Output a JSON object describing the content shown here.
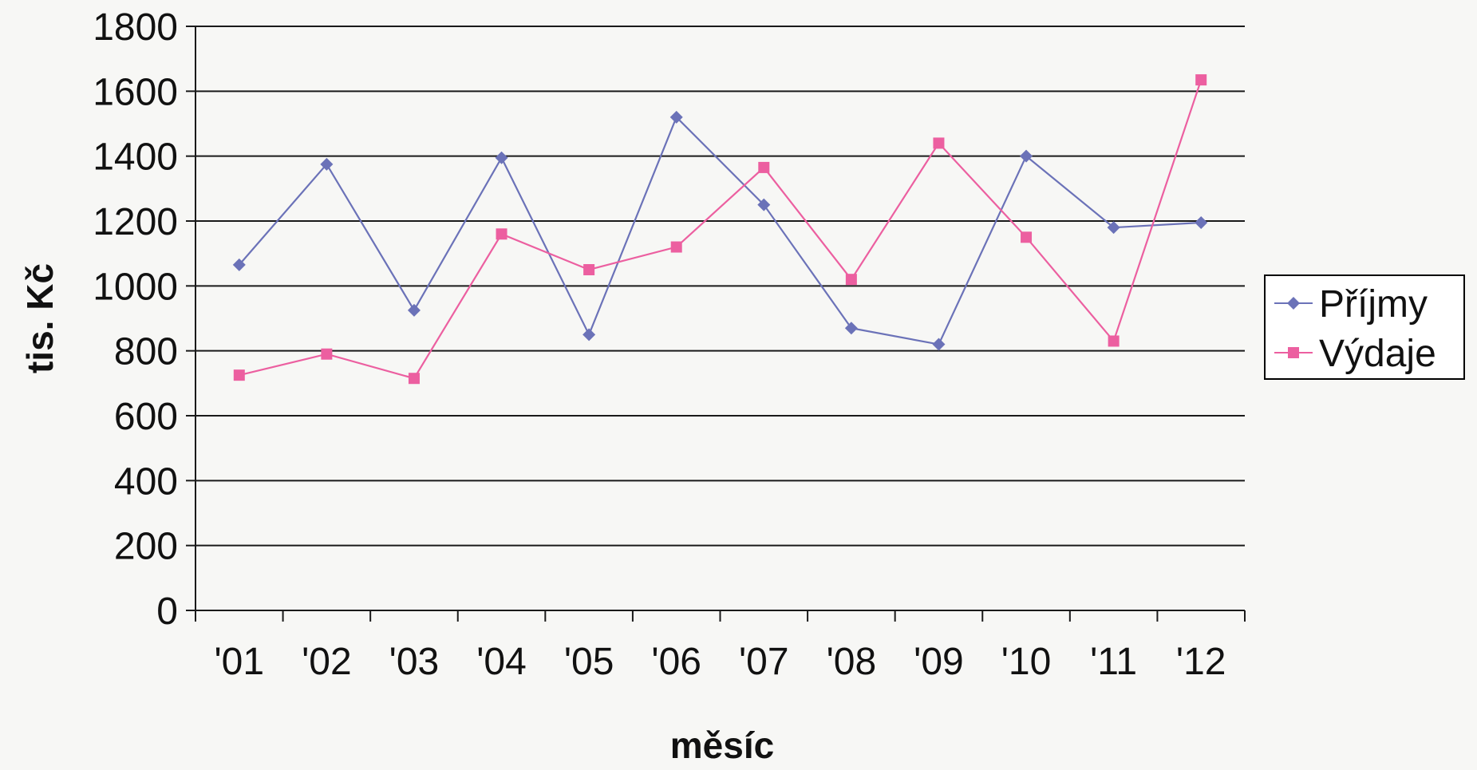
{
  "chart_data": {
    "type": "line",
    "title": "",
    "xlabel": "měsíc",
    "ylabel": "tis. Kč",
    "categories": [
      "'01",
      "'02",
      "'03",
      "'04",
      "'05",
      "'06",
      "'07",
      "'08",
      "'09",
      "'10",
      "'11",
      "'12"
    ],
    "ylim": [
      0,
      1800
    ],
    "yticks": [
      "0",
      "200",
      "400",
      "600",
      "800",
      "1000",
      "1200",
      "1400",
      "1600",
      "1800"
    ],
    "grid": "horizontal",
    "legend_position": "right",
    "series": [
      {
        "name": "Příjmy",
        "color": "#6b72b8",
        "marker": "diamond",
        "values": [
          1065,
          1375,
          925,
          1395,
          850,
          1520,
          1250,
          870,
          820,
          1400,
          1180,
          1195
        ]
      },
      {
        "name": "Výdaje",
        "color": "#ec5fa0",
        "marker": "square",
        "values": [
          725,
          790,
          715,
          1160,
          1050,
          1120,
          1365,
          1020,
          1440,
          1150,
          830,
          1635
        ]
      }
    ]
  }
}
